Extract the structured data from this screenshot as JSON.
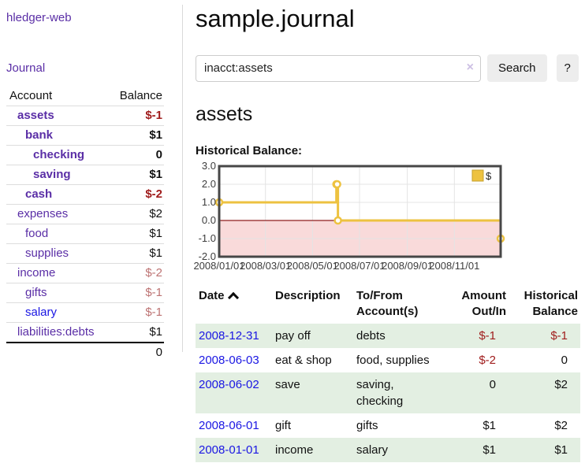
{
  "sidebar": {
    "brand": "hledger-web",
    "journal_link": "Journal",
    "accounts_table": {
      "account_header": "Account",
      "balance_header": "Balance",
      "rows": [
        {
          "account": "assets",
          "depth": 1,
          "bold": true,
          "balance": "$-1",
          "balance_color": "negative"
        },
        {
          "account": "bank",
          "depth": 2,
          "bold": true,
          "balance": "$1",
          "balance_color": "normal"
        },
        {
          "account": "checking",
          "depth": 3,
          "bold": true,
          "balance": "0",
          "balance_color": "normal"
        },
        {
          "account": "saving",
          "depth": 3,
          "bold": true,
          "balance": "$1",
          "balance_color": "normal"
        },
        {
          "account": "cash",
          "depth": 2,
          "bold": true,
          "balance": "$-2",
          "balance_color": "negative"
        },
        {
          "account": "expenses",
          "depth": 1,
          "bold": false,
          "balance": "$2",
          "balance_color": "normal"
        },
        {
          "account": "food",
          "depth": 2,
          "bold": false,
          "balance": "$1",
          "balance_color": "normal"
        },
        {
          "account": "supplies",
          "depth": 2,
          "bold": false,
          "balance": "$1",
          "balance_color": "normal"
        },
        {
          "account": "income",
          "depth": 1,
          "bold": false,
          "balance": "$-2",
          "balance_color": "negative-soft"
        },
        {
          "account": "gifts",
          "depth": 2,
          "bold": false,
          "balance": "$-1",
          "balance_color": "negative-soft"
        },
        {
          "account": "salary",
          "depth": 2,
          "bold": false,
          "balance": "$-1",
          "balance_color": "negative-soft",
          "link_color": "blue"
        },
        {
          "account": "liabilities:debts",
          "depth": 1,
          "bold": false,
          "balance": "$1",
          "balance_color": "normal"
        }
      ],
      "total": "0"
    }
  },
  "main": {
    "title": "sample.journal",
    "search": {
      "value": "inacct:assets",
      "clear_icon": "×",
      "search_button": "Search",
      "help_button": "?"
    },
    "account_heading": "assets",
    "chart_heading": "Historical Balance:"
  },
  "chart_data": {
    "type": "line",
    "style": "step",
    "title": "Historical Balance:",
    "series": [
      {
        "name": "$",
        "color": "#edc240",
        "points": [
          {
            "date": "2008-01-01",
            "value": 1
          },
          {
            "date": "2008-06-01",
            "value": 2
          },
          {
            "date": "2008-06-02",
            "value": 2
          },
          {
            "date": "2008-06-03",
            "value": 0
          },
          {
            "date": "2008-12-31",
            "value": -1
          }
        ]
      }
    ],
    "xlim": [
      "2008-01-01",
      "2008-12-31"
    ],
    "ylim": [
      -2,
      3
    ],
    "x_ticks": [
      {
        "label": "2008/01/01",
        "date": "2008-01-01"
      },
      {
        "label": "2008/03/01",
        "date": "2008-03-01"
      },
      {
        "label": "2008/05/01",
        "date": "2008-05-01"
      },
      {
        "label": "2008/07/01",
        "date": "2008-07-01"
      },
      {
        "label": "2008/09/01",
        "date": "2008-09-01"
      },
      {
        "label": "2008/11/01",
        "date": "2008-11-01"
      }
    ],
    "y_ticks": [
      {
        "label": "3.0",
        "value": 3
      },
      {
        "label": "2.0",
        "value": 2
      },
      {
        "label": "1.0",
        "value": 1
      },
      {
        "label": "0.0",
        "value": 0
      },
      {
        "label": "-1.0",
        "value": -1
      },
      {
        "label": "-2.0",
        "value": -2
      }
    ],
    "legend": {
      "label": "$",
      "position": "top-right"
    },
    "grid": true,
    "grid_color": "#e4e4e4",
    "zero_line_color": "#8f1e1e",
    "negative_region_color": "#f9dada",
    "border_color": "#474747"
  },
  "transactions": {
    "sort_icon": "chevron-up",
    "headers": {
      "date": "Date",
      "description": "Description",
      "accounts": "To/From Account(s)",
      "amount": "Amount Out/In",
      "balance": "Historical Balance"
    },
    "rows": [
      {
        "date": "2008-12-31",
        "description": "pay off",
        "accounts": "debts",
        "amount": "$-1",
        "amount_negative": true,
        "balance": "$-1",
        "balance_negative": true
      },
      {
        "date": "2008-06-03",
        "description": "eat & shop",
        "accounts": "food, supplies",
        "amount": "$-2",
        "amount_negative": true,
        "balance": "0",
        "balance_negative": false
      },
      {
        "date": "2008-06-02",
        "description": "save",
        "accounts": "saving, checking",
        "amount": "0",
        "amount_negative": false,
        "balance": "$2",
        "balance_negative": false
      },
      {
        "date": "2008-06-01",
        "description": "gift",
        "accounts": "gifts",
        "amount": "$1",
        "amount_negative": false,
        "balance": "$2",
        "balance_negative": false
      },
      {
        "date": "2008-01-01",
        "description": "income",
        "accounts": "salary",
        "amount": "$1",
        "amount_negative": false,
        "balance": "$1",
        "balance_negative": false
      }
    ]
  }
}
